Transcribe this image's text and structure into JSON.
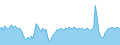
{
  "chart_data": {
    "type": "area",
    "x": [
      0,
      1,
      2,
      3,
      4,
      5,
      6,
      7,
      8,
      9,
      10,
      11,
      12,
      13,
      14,
      15,
      16,
      17,
      18,
      19,
      20,
      21,
      22,
      23,
      24,
      25,
      26,
      27,
      28,
      29,
      30,
      31,
      32,
      33,
      34,
      35,
      36,
      37,
      38,
      39,
      40,
      41,
      42,
      43,
      44,
      45,
      46,
      47,
      48,
      49,
      50,
      51,
      52,
      53,
      54,
      55,
      56,
      57,
      58,
      59,
      60,
      61,
      62,
      63,
      64,
      65,
      66,
      67,
      68,
      69,
      70,
      71,
      72,
      73
    ],
    "values": [
      8,
      12,
      6,
      14,
      10,
      8,
      12,
      16,
      10,
      14,
      12,
      8,
      10,
      6,
      -2,
      -8,
      -12,
      -6,
      -10,
      -4,
      -8,
      2,
      18,
      14,
      8,
      4,
      10,
      6,
      8,
      -6,
      -14,
      -10,
      -4,
      0,
      4,
      8,
      6,
      10,
      8,
      6,
      10,
      8,
      12,
      10,
      8,
      12,
      10,
      8,
      10,
      8,
      10,
      6,
      8,
      10,
      8,
      6,
      8,
      10,
      50,
      30,
      6,
      -4,
      -8,
      -6,
      2,
      6,
      10,
      8,
      12,
      10,
      8,
      12,
      10,
      8
    ],
    "color": "#4db3e6",
    "xlim": [
      0,
      73
    ],
    "ylim": [
      -20,
      60
    ],
    "grid": false,
    "tick_labels": false
  }
}
